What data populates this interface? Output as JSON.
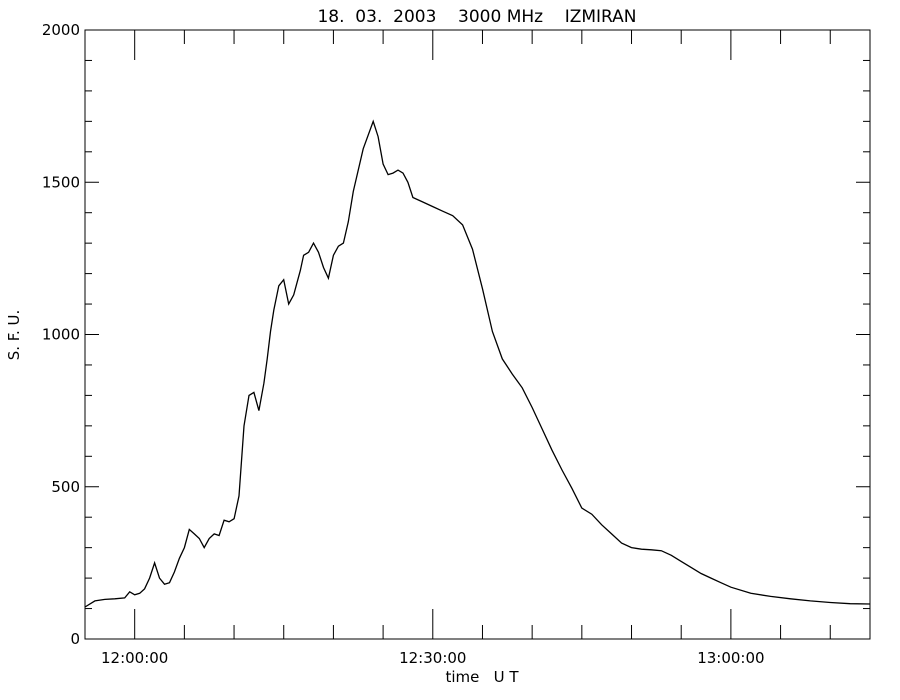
{
  "chart_data": {
    "type": "line",
    "title": "18.  03.  2003    3000 MHz    IZMIRAN",
    "xlabel": "time   U T",
    "ylabel": "S. F. U.",
    "xlim": [
      "11:55:00",
      "13:14:00"
    ],
    "ylim": [
      0,
      2000
    ],
    "x_tick_labels": [
      "12:00:00",
      "12:30:00",
      "13:00:00"
    ],
    "y_tick_labels": [
      "0",
      "500",
      "1000",
      "1500",
      "2000"
    ],
    "grid": false,
    "line_color": "#000000",
    "series": [
      {
        "x": [
          "11:55:00",
          "11:56:00",
          "11:57:00",
          "11:58:00",
          "11:59:00",
          "11:59:30",
          "12:00:00",
          "12:00:30",
          "12:01:00",
          "12:01:30",
          "12:02:00",
          "12:02:30",
          "12:03:00",
          "12:03:30",
          "12:04:00",
          "12:04:30",
          "12:05:00",
          "12:05:30",
          "12:06:00",
          "12:06:30",
          "12:07:00",
          "12:07:30",
          "12:08:00",
          "12:08:30",
          "12:09:00",
          "12:09:30",
          "12:10:00",
          "12:10:30",
          "12:11:00",
          "12:11:30",
          "12:12:00",
          "12:12:30",
          "12:13:00",
          "12:13:20",
          "12:13:40",
          "12:14:00",
          "12:14:30",
          "12:15:00",
          "12:15:30",
          "12:16:00",
          "12:16:20",
          "12:16:40",
          "12:17:00",
          "12:17:30",
          "12:18:00",
          "12:18:30",
          "12:19:00",
          "12:19:30",
          "12:20:00",
          "12:20:30",
          "12:21:00",
          "12:21:30",
          "12:22:00",
          "12:23:00",
          "12:24:00",
          "12:24:30",
          "12:25:00",
          "12:25:30",
          "12:26:00",
          "12:26:30",
          "12:27:00",
          "12:27:30",
          "12:28:00",
          "12:29:00",
          "12:30:00",
          "12:31:00",
          "12:32:00",
          "12:33:00",
          "12:34:00",
          "12:35:00",
          "12:36:00",
          "12:37:00",
          "12:38:00",
          "12:39:00",
          "12:40:00",
          "12:41:00",
          "12:42:00",
          "12:43:00",
          "12:44:00",
          "12:45:00",
          "12:46:00",
          "12:47:00",
          "12:48:00",
          "12:49:00",
          "12:50:00",
          "12:51:00",
          "12:52:00",
          "12:53:00",
          "12:54:00",
          "12:55:00",
          "12:56:00",
          "12:57:00",
          "12:58:00",
          "12:59:00",
          "13:00:00",
          "13:02:00",
          "13:04:00",
          "13:06:00",
          "13:08:00",
          "13:10:00",
          "13:12:00",
          "13:14:00"
        ],
        "y": [
          105,
          125,
          130,
          132,
          135,
          155,
          145,
          150,
          165,
          200,
          250,
          200,
          180,
          185,
          220,
          265,
          300,
          360,
          345,
          330,
          300,
          330,
          345,
          340,
          390,
          385,
          395,
          470,
          700,
          800,
          810,
          750,
          840,
          920,
          1010,
          1080,
          1160,
          1180,
          1100,
          1130,
          1170,
          1210,
          1260,
          1270,
          1300,
          1270,
          1220,
          1185,
          1260,
          1290,
          1300,
          1370,
          1470,
          1610,
          1700,
          1650,
          1560,
          1525,
          1530,
          1540,
          1530,
          1500,
          1450,
          1435,
          1420,
          1405,
          1390,
          1360,
          1280,
          1150,
          1010,
          920,
          870,
          825,
          760,
          690,
          620,
          555,
          495,
          430,
          410,
          375,
          345,
          315,
          300,
          295,
          293,
          290,
          275,
          255,
          235,
          215,
          200,
          185,
          170,
          150,
          140,
          132,
          125,
          120,
          116,
          115
        ]
      }
    ]
  }
}
